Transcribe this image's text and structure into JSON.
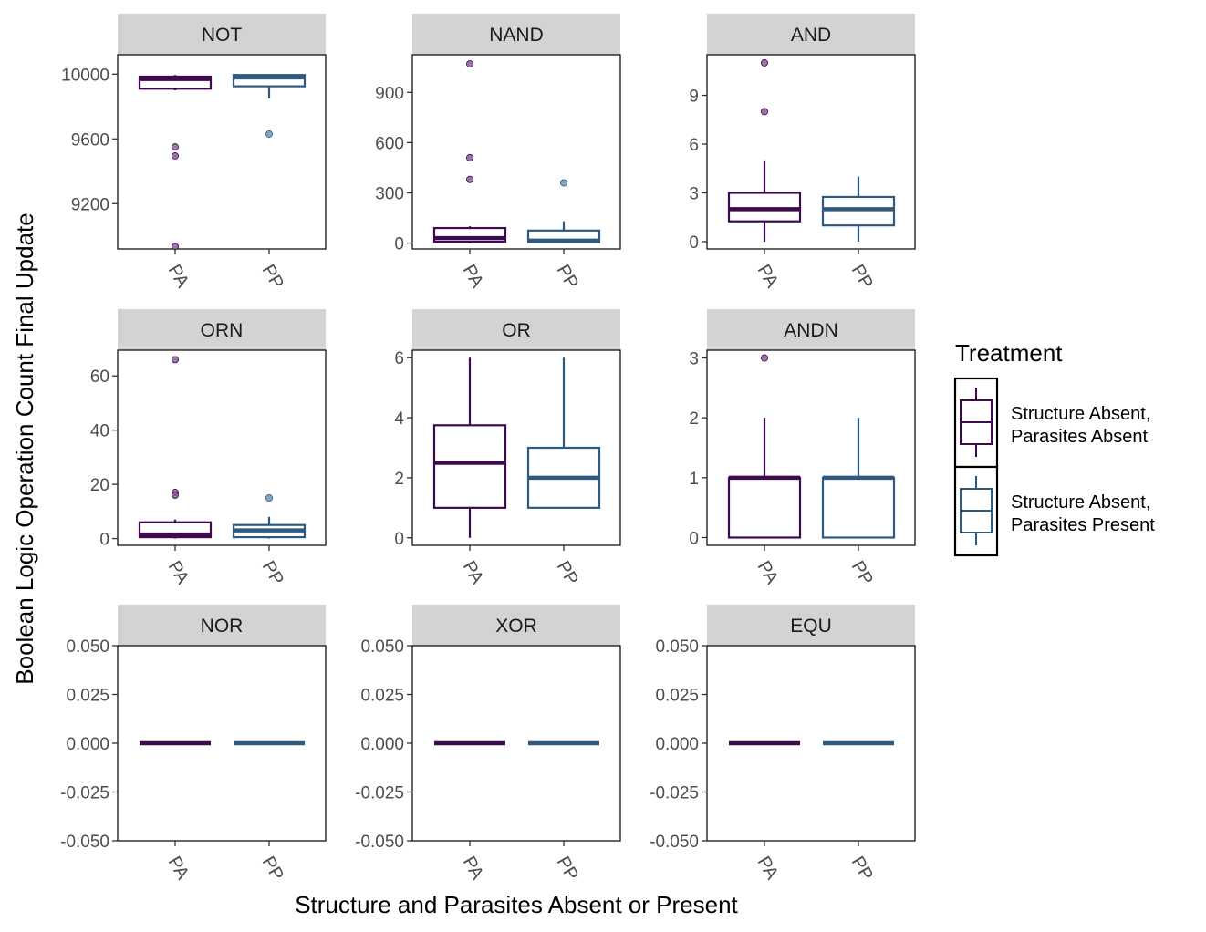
{
  "chart_data": {
    "type": "boxplot",
    "layout": "facet-grid-3x3",
    "xlabel": "Structure and Parasites Absent or Present",
    "ylabel": "Boolean Logic Operation Count Final Update",
    "categories": [
      "PA",
      "PP"
    ],
    "legend": {
      "title": "Treatment",
      "placement": "right",
      "entries": [
        {
          "label_line1": "Structure Absent,",
          "label_line2": "Parasites Absent",
          "color": "#3d0a4f"
        },
        {
          "label_line1": "Structure Absent,",
          "label_line2": "Parasites Present",
          "color": "#2f5a80"
        }
      ]
    },
    "colors": {
      "PA": "#3d0a4f",
      "PP": "#2f5a80",
      "strip": "#d3d3d3",
      "PA_outlier": "#8a5a99",
      "PP_outlier": "#7193b5"
    },
    "panels": [
      {
        "title": "NOT",
        "ylim": [
          8920,
          10120
        ],
        "ticks": [
          9200,
          9600,
          10000
        ],
        "tick_labels": [
          "9200",
          "9600",
          "10000"
        ],
        "boxes": [
          {
            "group": "PA",
            "min": 9900,
            "q1": 9910,
            "median": 9970,
            "q3": 9985,
            "max": 9995,
            "outliers": [
              9550,
              9495,
              8935
            ]
          },
          {
            "group": "PP",
            "min": 9850,
            "q1": 9925,
            "median": 9980,
            "q3": 9995,
            "max": 9998,
            "outliers": [
              9630
            ]
          }
        ]
      },
      {
        "title": "NAND",
        "ylim": [
          -35,
          1125
        ],
        "ticks": [
          0,
          300,
          600,
          900
        ],
        "tick_labels": [
          "0",
          "300",
          "600",
          "900"
        ],
        "boxes": [
          {
            "group": "PA",
            "min": 0,
            "q1": 8,
            "median": 30,
            "q3": 90,
            "max": 100,
            "outliers": [
              1070,
              510,
              380
            ]
          },
          {
            "group": "PP",
            "min": 0,
            "q1": 5,
            "median": 15,
            "q3": 75,
            "max": 130,
            "outliers": [
              360
            ]
          }
        ]
      },
      {
        "title": "AND",
        "ylim": [
          -0.45,
          11.5
        ],
        "ticks": [
          0,
          3,
          6,
          9
        ],
        "tick_labels": [
          "0",
          "3",
          "6",
          "9"
        ],
        "boxes": [
          {
            "group": "PA",
            "min": 0,
            "q1": 1.25,
            "median": 2,
            "q3": 3,
            "max": 5,
            "outliers": [
              11,
              8
            ]
          },
          {
            "group": "PP",
            "min": 0,
            "q1": 1,
            "median": 2,
            "q3": 2.75,
            "max": 4,
            "outliers": []
          }
        ]
      },
      {
        "title": "ORN",
        "ylim": [
          -2.5,
          69.5
        ],
        "ticks": [
          0,
          20,
          40,
          60
        ],
        "tick_labels": [
          "0",
          "20",
          "40",
          "60"
        ],
        "boxes": [
          {
            "group": "PA",
            "min": 0,
            "q1": 0.5,
            "median": 1.5,
            "q3": 6,
            "max": 7,
            "outliers": [
              66,
              17,
              16
            ]
          },
          {
            "group": "PP",
            "min": 0,
            "q1": 0.5,
            "median": 3,
            "q3": 5,
            "max": 8,
            "outliers": [
              15
            ]
          }
        ]
      },
      {
        "title": "OR",
        "ylim": [
          -0.25,
          6.25
        ],
        "ticks": [
          0,
          2,
          4,
          6
        ],
        "tick_labels": [
          "0",
          "2",
          "4",
          "6"
        ],
        "boxes": [
          {
            "group": "PA",
            "min": 0,
            "q1": 1,
            "median": 2.5,
            "q3": 3.75,
            "max": 6,
            "outliers": []
          },
          {
            "group": "PP",
            "min": 1,
            "q1": 1,
            "median": 2,
            "q3": 3,
            "max": 6,
            "outliers": []
          }
        ]
      },
      {
        "title": "ANDN",
        "ylim": [
          -0.13,
          3.13
        ],
        "ticks": [
          0,
          1,
          2,
          3
        ],
        "tick_labels": [
          "0",
          "1",
          "2",
          "3"
        ],
        "boxes": [
          {
            "group": "PA",
            "min": 0,
            "q1": 0,
            "median": 1,
            "q3": 1,
            "max": 2,
            "outliers": [
              3
            ]
          },
          {
            "group": "PP",
            "min": 0,
            "q1": 0,
            "median": 1,
            "q3": 1,
            "max": 2,
            "outliers": []
          }
        ]
      },
      {
        "title": "NOR",
        "ylim": [
          -0.05,
          0.05
        ],
        "ticks": [
          -0.05,
          -0.025,
          0,
          0.025,
          0.05
        ],
        "tick_labels": [
          "-0.050",
          "-0.025",
          "0.000",
          "0.025",
          "0.050"
        ],
        "boxes": [
          {
            "group": "PA",
            "min": 0,
            "q1": 0,
            "median": 0,
            "q3": 0,
            "max": 0,
            "outliers": []
          },
          {
            "group": "PP",
            "min": 0,
            "q1": 0,
            "median": 0,
            "q3": 0,
            "max": 0,
            "outliers": []
          }
        ]
      },
      {
        "title": "XOR",
        "ylim": [
          -0.05,
          0.05
        ],
        "ticks": [
          -0.05,
          -0.025,
          0,
          0.025,
          0.05
        ],
        "tick_labels": [
          "-0.050",
          "-0.025",
          "0.000",
          "0.025",
          "0.050"
        ],
        "boxes": [
          {
            "group": "PA",
            "min": 0,
            "q1": 0,
            "median": 0,
            "q3": 0,
            "max": 0,
            "outliers": []
          },
          {
            "group": "PP",
            "min": 0,
            "q1": 0,
            "median": 0,
            "q3": 0,
            "max": 0,
            "outliers": []
          }
        ]
      },
      {
        "title": "EQU",
        "ylim": [
          -0.05,
          0.05
        ],
        "ticks": [
          -0.05,
          -0.025,
          0,
          0.025,
          0.05
        ],
        "tick_labels": [
          "-0.050",
          "-0.025",
          "0.000",
          "0.025",
          "0.050"
        ],
        "boxes": [
          {
            "group": "PA",
            "min": 0,
            "q1": 0,
            "median": 0,
            "q3": 0,
            "max": 0,
            "outliers": []
          },
          {
            "group": "PP",
            "min": 0,
            "q1": 0,
            "median": 0,
            "q3": 0,
            "max": 0,
            "outliers": []
          }
        ]
      }
    ]
  }
}
